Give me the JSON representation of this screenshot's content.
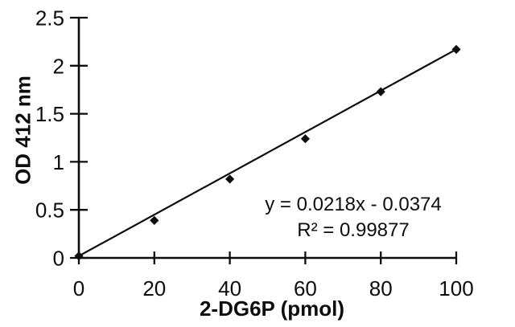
{
  "figure": {
    "background_color": "#ffffff",
    "ink_color": "#0d0d0d"
  },
  "chart_data": {
    "type": "scatter",
    "title": "",
    "xlabel": "2-DG6P (pmol)",
    "ylabel": "OD 412 nm",
    "x": [
      0,
      20,
      40,
      60,
      80,
      100
    ],
    "y": [
      0.02,
      0.39,
      0.82,
      1.24,
      1.73,
      2.17
    ],
    "xlim": [
      0,
      100
    ],
    "ylim": [
      0,
      2.5
    ],
    "x_ticks": [
      0,
      20,
      40,
      60,
      80,
      100
    ],
    "x_tick_labels": [
      "0",
      "20",
      "40",
      "60",
      "80",
      "100"
    ],
    "y_ticks": [
      0,
      0.5,
      1,
      1.5,
      2,
      2.5
    ],
    "y_tick_labels": [
      "0",
      "0.5",
      "1",
      "1.5",
      "2",
      "2.5"
    ],
    "grid": false,
    "legend": "none",
    "marker": "diamond",
    "trendline": {
      "slope": 0.0218,
      "intercept": -0.0374,
      "equation_label": "y = 0.0218x - 0.0374",
      "r_squared_label": "R² = 0.99877"
    }
  }
}
